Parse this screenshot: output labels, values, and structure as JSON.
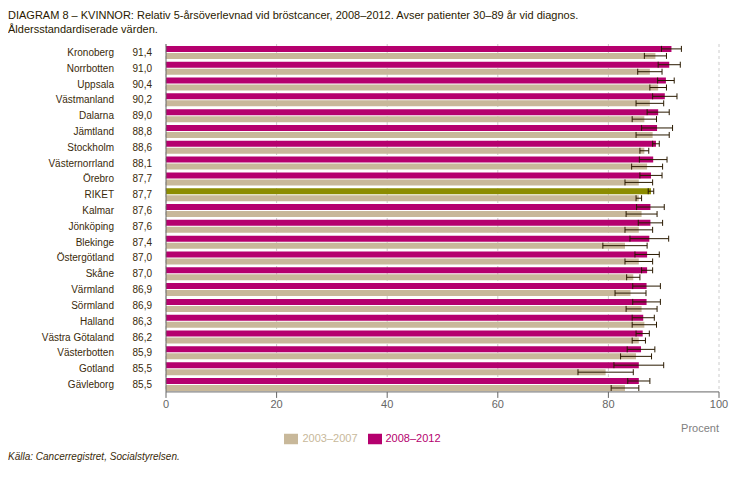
{
  "chart_data": {
    "type": "bar",
    "orientation": "horizontal",
    "title": "DIAGRAM 8 – KVINNOR: Relativ 5-årsöverlevnad vid bröstcancer, 2008–2012. Avser patienter 30–89 år vid diagnos.",
    "subtitle": "Åldersstandardiserade värden.",
    "annotations": [
      "Källa: Cancerregistret, Socialstyrelsen."
    ],
    "xlabel": "Procent",
    "categories": [
      "Kronoberg",
      "Norrbotten",
      "Uppsala",
      "Västmanland",
      "Dalarna",
      "Jämtland",
      "Stockholm",
      "Västernorrland",
      "Örebro",
      "RIKET",
      "Kalmar",
      "Jönköping",
      "Blekinge",
      "Östergötland",
      "Skåne",
      "Värmland",
      "Sörmland",
      "Halland",
      "Västra Götaland",
      "Västerbotten",
      "Gotland",
      "Gävleborg"
    ],
    "series": [
      {
        "name": "2008–2012",
        "color": "#b5006e",
        "colors": [
          "#b5006e",
          "#b5006e",
          "#b5006e",
          "#b5006e",
          "#b5006e",
          "#b5006e",
          "#b5006e",
          "#b5006e",
          "#b5006e",
          "#8c8c00",
          "#b5006e",
          "#b5006e",
          "#b5006e",
          "#b5006e",
          "#b5006e",
          "#b5006e",
          "#b5006e",
          "#b5006e",
          "#b5006e",
          "#b5006e",
          "#b5006e",
          "#b5006e"
        ],
        "values": [
          91.4,
          91.0,
          90.4,
          90.2,
          89.0,
          88.8,
          88.6,
          88.1,
          87.7,
          87.7,
          87.6,
          87.6,
          87.4,
          87.0,
          87.0,
          86.9,
          86.9,
          86.3,
          86.2,
          85.9,
          85.5,
          85.5
        ],
        "value_labels": [
          "91,4",
          "91,0",
          "90,4",
          "90,2",
          "89,0",
          "88,8",
          "88,6",
          "88,1",
          "87,7",
          "87,7",
          "87,6",
          "87,6",
          "87,4",
          "87,0",
          "87,0",
          "86,9",
          "86,9",
          "86,3",
          "86,2",
          "85,9",
          "85,5",
          "85,5"
        ],
        "errors": [
          1.8,
          2.0,
          1.5,
          2.2,
          2.0,
          2.8,
          0.6,
          2.5,
          2.0,
          0.5,
          2.5,
          2.2,
          3.5,
          2.2,
          1.0,
          2.5,
          2.5,
          2.0,
          1.2,
          2.5,
          4.5,
          2.0
        ]
      },
      {
        "name": "2003–2007",
        "color": "#c8b89a",
        "values": [
          88.5,
          87.5,
          89.0,
          87.5,
          86.5,
          88.0,
          86.5,
          87.0,
          85.5,
          85.5,
          86.0,
          85.5,
          83.0,
          85.5,
          84.5,
          84.0,
          86.0,
          86.5,
          85.5,
          85.0,
          79.5,
          83.0
        ],
        "errors": [
          2.0,
          2.2,
          1.5,
          2.5,
          2.2,
          3.0,
          0.8,
          2.8,
          2.5,
          0.5,
          2.8,
          2.5,
          4.0,
          2.5,
          1.2,
          2.8,
          2.8,
          2.2,
          1.2,
          2.8,
          5.0,
          2.5
        ]
      }
    ],
    "xlim": [
      0,
      100
    ],
    "xticks": [
      0,
      20,
      40,
      60,
      80,
      100
    ],
    "grid": true,
    "legend": "bottom"
  }
}
